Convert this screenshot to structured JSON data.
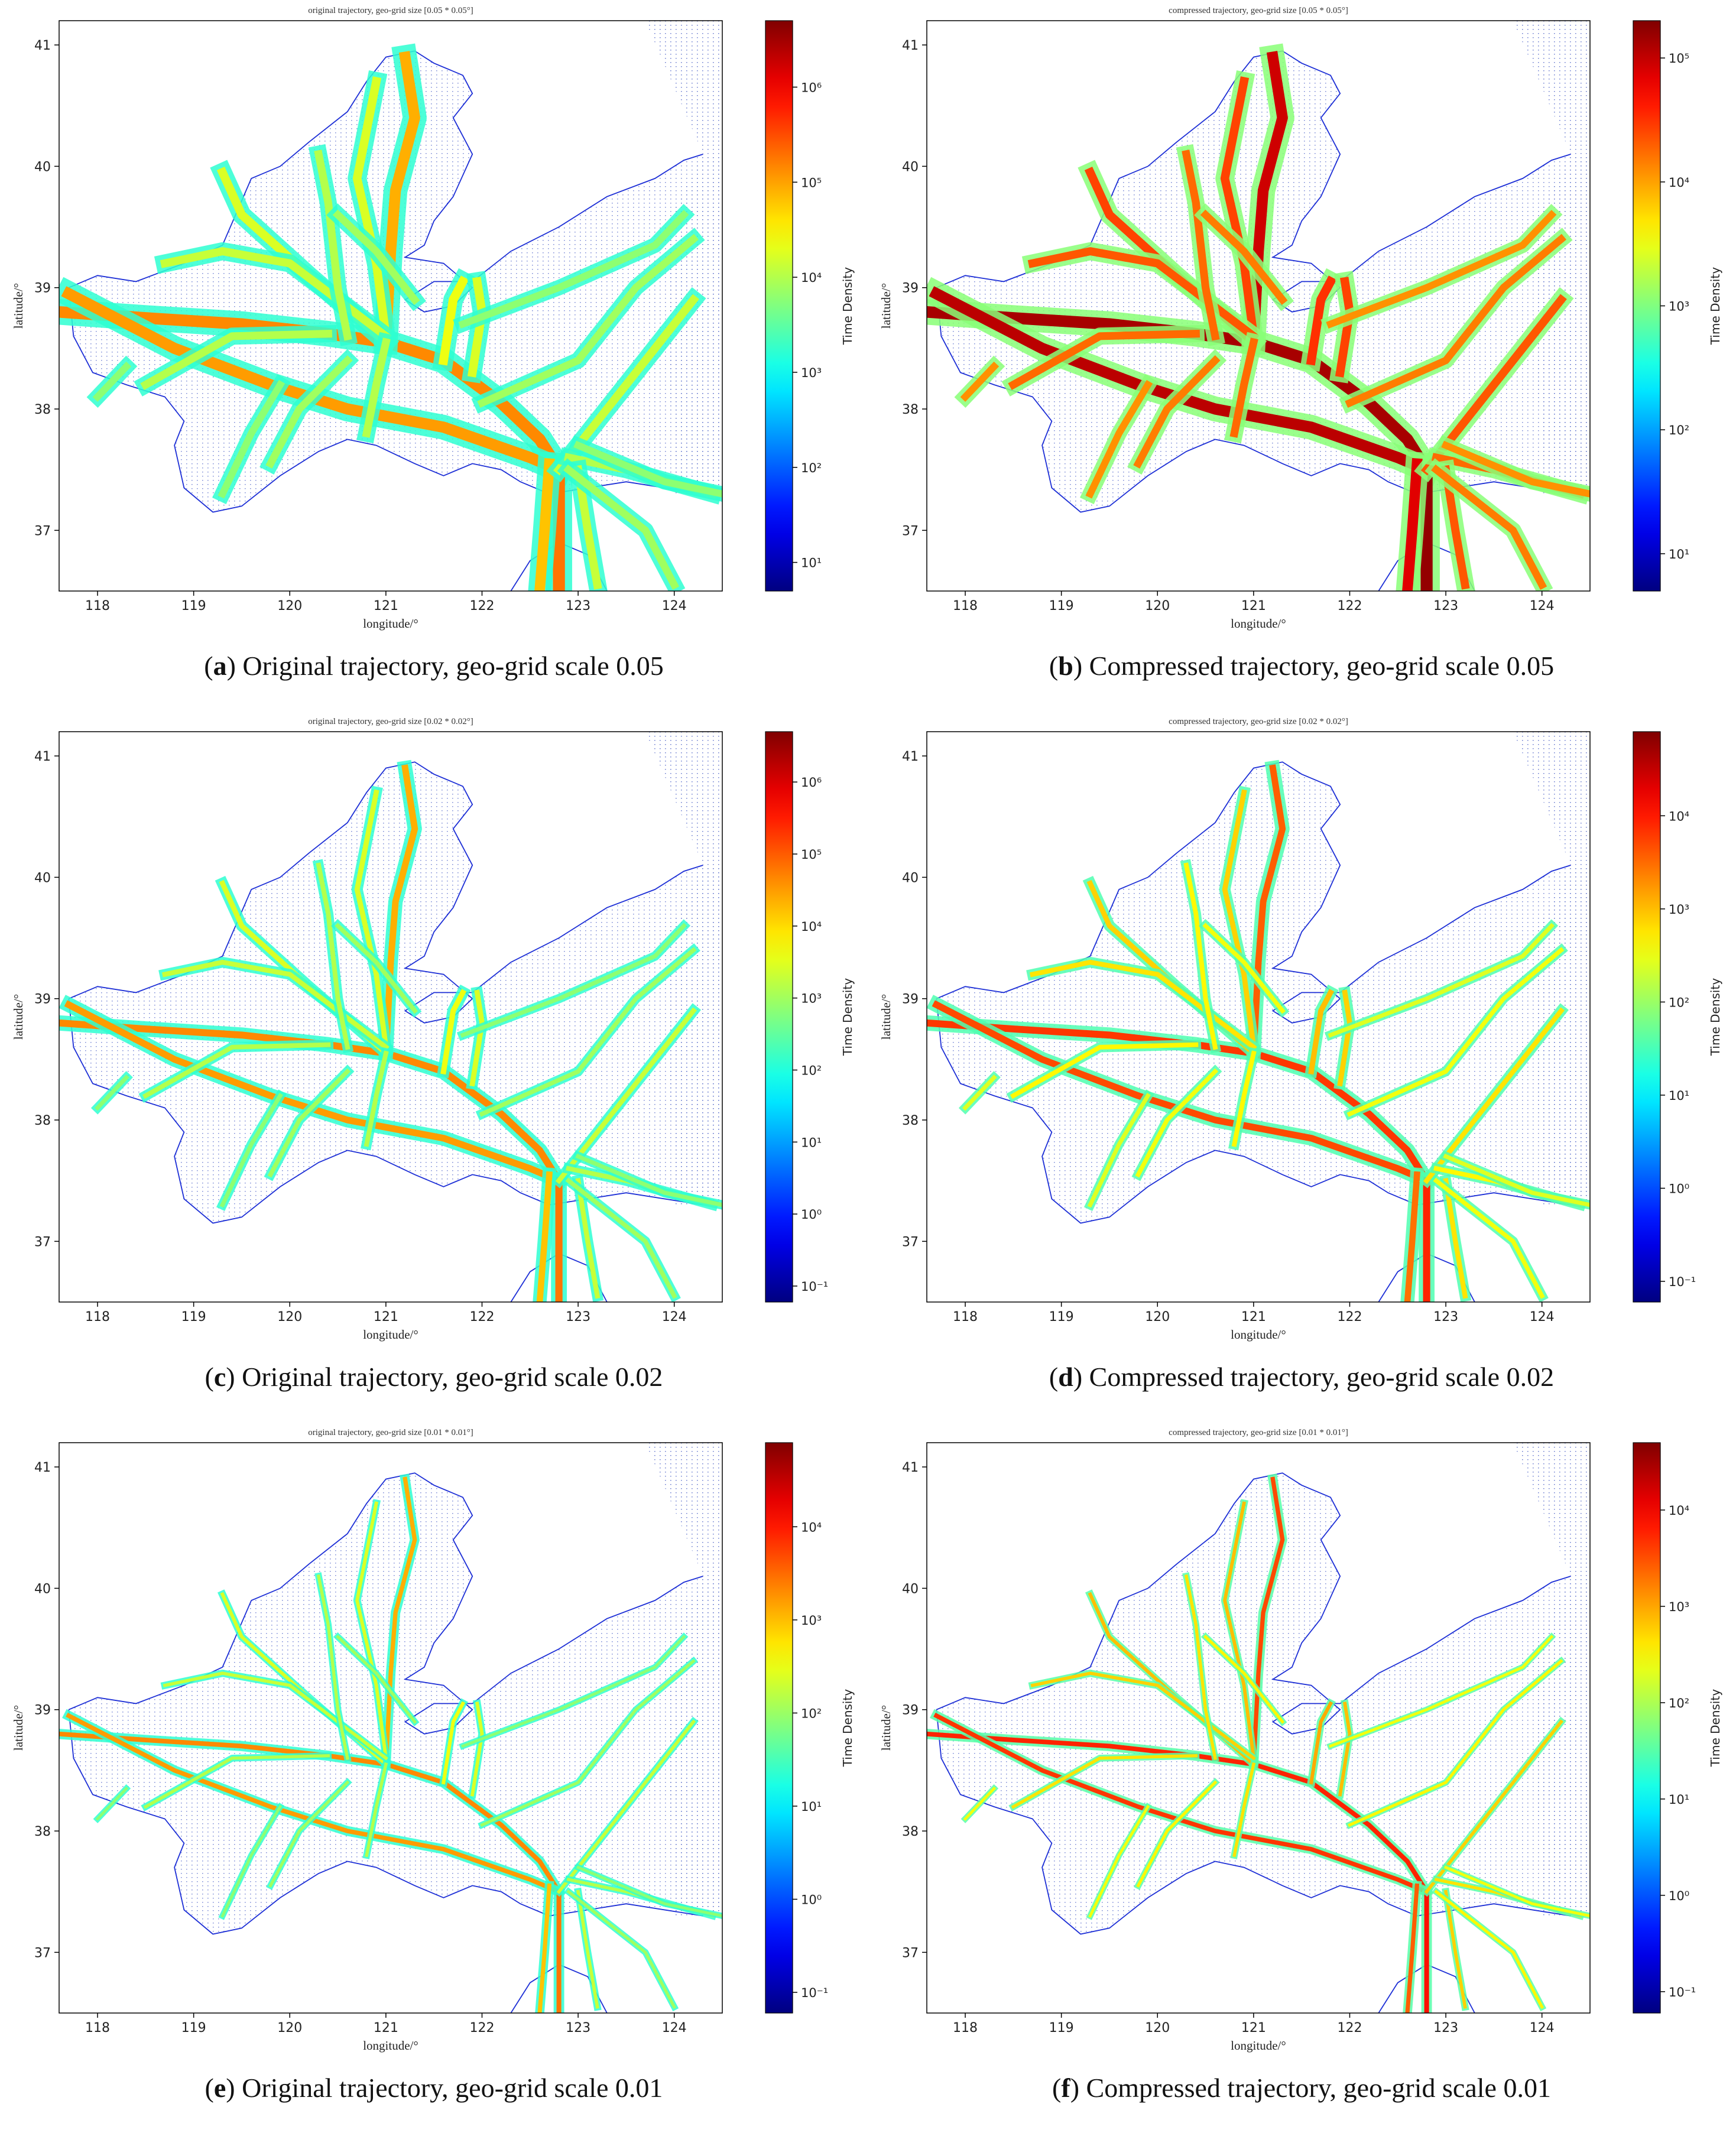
{
  "figure": {
    "panels": [
      {
        "letter": "a",
        "caption_rest": " Original trajectory, geo-grid scale 0.05",
        "colorbar": {
          "min_exp": 1,
          "max_exp": 6,
          "ticks": [
            "10¹",
            "10²",
            "10³",
            "10⁴",
            "10⁵",
            "10⁶"
          ],
          "label": "Time Density"
        },
        "band": 0.05,
        "gain": 0.0
      },
      {
        "letter": "b",
        "caption_rest": " Compressed trajectory, geo-grid scale 0.05",
        "colorbar": {
          "min_exp": 1,
          "max_exp": 5,
          "ticks": [
            "10¹",
            "10²",
            "10³",
            "10⁴",
            "10⁵"
          ],
          "label": "Time Density"
        },
        "band": 0.05,
        "gain": 0.22
      },
      {
        "letter": "c",
        "caption_rest": " Original trajectory, geo-grid scale 0.02",
        "colorbar": {
          "min_exp": -1,
          "max_exp": 6,
          "ticks": [
            "10⁻¹",
            "10⁰",
            "10¹",
            "10²",
            "10³",
            "10⁴",
            "10⁵",
            "10⁶"
          ],
          "label": "Time Density"
        },
        "band": 0.03,
        "gain": 0.0
      },
      {
        "letter": "d",
        "caption_rest": " Compressed trajectory, geo-grid scale 0.02",
        "colorbar": {
          "min_exp": -1,
          "max_exp": 4,
          "ticks": [
            "10⁻¹",
            "10⁰",
            "10¹",
            "10²",
            "10³",
            "10⁴"
          ],
          "label": "Time Density"
        },
        "band": 0.03,
        "gain": 0.08
      },
      {
        "letter": "e",
        "caption_rest": " Original trajectory, geo-grid scale 0.01",
        "colorbar": {
          "min_exp": -1,
          "max_exp": 4,
          "ticks": [
            "10⁻¹",
            "10⁰",
            "10¹",
            "10²",
            "10³",
            "10⁴"
          ],
          "label": "Time Density"
        },
        "band": 0.02,
        "gain": 0.0
      },
      {
        "letter": "f",
        "caption_rest": " Compressed trajectory, geo-grid scale 0.01",
        "colorbar": {
          "min_exp": -1,
          "max_exp": 4,
          "ticks": [
            "10⁻¹",
            "10⁰",
            "10¹",
            "10²",
            "10³",
            "10⁴"
          ],
          "label": "Time Density"
        },
        "band": 0.02,
        "gain": 0.1
      }
    ]
  },
  "chart_data": [
    {
      "type": "heatmap",
      "title": "original trajectory, geo-grid size [0.05 * 0.05°]",
      "xlabel": "longitude/°",
      "ylabel": "latitude/°",
      "xlim": [
        117.6,
        124.5
      ],
      "ylim": [
        36.5,
        41.2
      ],
      "xticks": [
        "118",
        "119",
        "120",
        "121",
        "122",
        "123",
        "124"
      ],
      "yticks": [
        "37",
        "38",
        "39",
        "40",
        "41"
      ],
      "colorbar_label": "Time Density",
      "colorbar_scale": "log",
      "colorbar_range": [
        5,
        5000000
      ]
    },
    {
      "type": "heatmap",
      "title": "compressed trajectory, geo-grid size [0.05 * 0.05°]",
      "xlabel": "longitude/°",
      "ylabel": "latitude/°",
      "xlim": [
        117.6,
        124.5
      ],
      "ylim": [
        36.5,
        41.2
      ],
      "xticks": [
        "118",
        "119",
        "120",
        "121",
        "122",
        "123",
        "124"
      ],
      "yticks": [
        "37",
        "38",
        "39",
        "40",
        "41"
      ],
      "colorbar_label": "Time Density",
      "colorbar_scale": "log",
      "colorbar_range": [
        5,
        200000
      ]
    },
    {
      "type": "heatmap",
      "title": "original trajectory, geo-grid size [0.02 * 0.02°]",
      "xlabel": "longitude/°",
      "ylabel": "latitude/°",
      "xlim": [
        117.6,
        124.5
      ],
      "ylim": [
        36.5,
        41.2
      ],
      "xticks": [
        "118",
        "119",
        "120",
        "121",
        "122",
        "123",
        "124"
      ],
      "yticks": [
        "37",
        "38",
        "39",
        "40",
        "41"
      ],
      "colorbar_label": "Time Density",
      "colorbar_scale": "log",
      "colorbar_range": [
        0.06,
        5000000
      ]
    },
    {
      "type": "heatmap",
      "title": "compressed trajectory, geo-grid size [0.02 * 0.02°]",
      "xlabel": "longitude/°",
      "ylabel": "latitude/°",
      "xlim": [
        117.6,
        124.5
      ],
      "ylim": [
        36.5,
        41.2
      ],
      "xticks": [
        "118",
        "119",
        "120",
        "121",
        "122",
        "123",
        "124"
      ],
      "yticks": [
        "37",
        "38",
        "39",
        "40",
        "41"
      ],
      "colorbar_label": "Time Density",
      "colorbar_scale": "log",
      "colorbar_range": [
        0.06,
        80000
      ]
    },
    {
      "type": "heatmap",
      "title": "original trajectory, geo-grid size [0.01 * 0.01°]",
      "xlabel": "longitude/°",
      "ylabel": "latitude/°",
      "xlim": [
        117.6,
        124.5
      ],
      "ylim": [
        36.5,
        41.2
      ],
      "xticks": [
        "118",
        "119",
        "120",
        "121",
        "122",
        "123",
        "124"
      ],
      "yticks": [
        "37",
        "38",
        "39",
        "40",
        "41"
      ],
      "colorbar_label": "Time Density",
      "colorbar_scale": "log",
      "colorbar_range": [
        0.06,
        80000
      ]
    },
    {
      "type": "heatmap",
      "title": "compressed trajectory, geo-grid size [0.01 * 0.01°]",
      "xlabel": "longitude/°",
      "ylabel": "latitude/°",
      "xlim": [
        117.6,
        124.5
      ],
      "ylim": [
        36.5,
        41.2
      ],
      "xticks": [
        "118",
        "119",
        "120",
        "121",
        "122",
        "123",
        "124"
      ],
      "yticks": [
        "37",
        "38",
        "39",
        "40",
        "41"
      ],
      "colorbar_label": "Time Density",
      "colorbar_scale": "log",
      "colorbar_range": [
        0.06,
        50000
      ]
    }
  ]
}
